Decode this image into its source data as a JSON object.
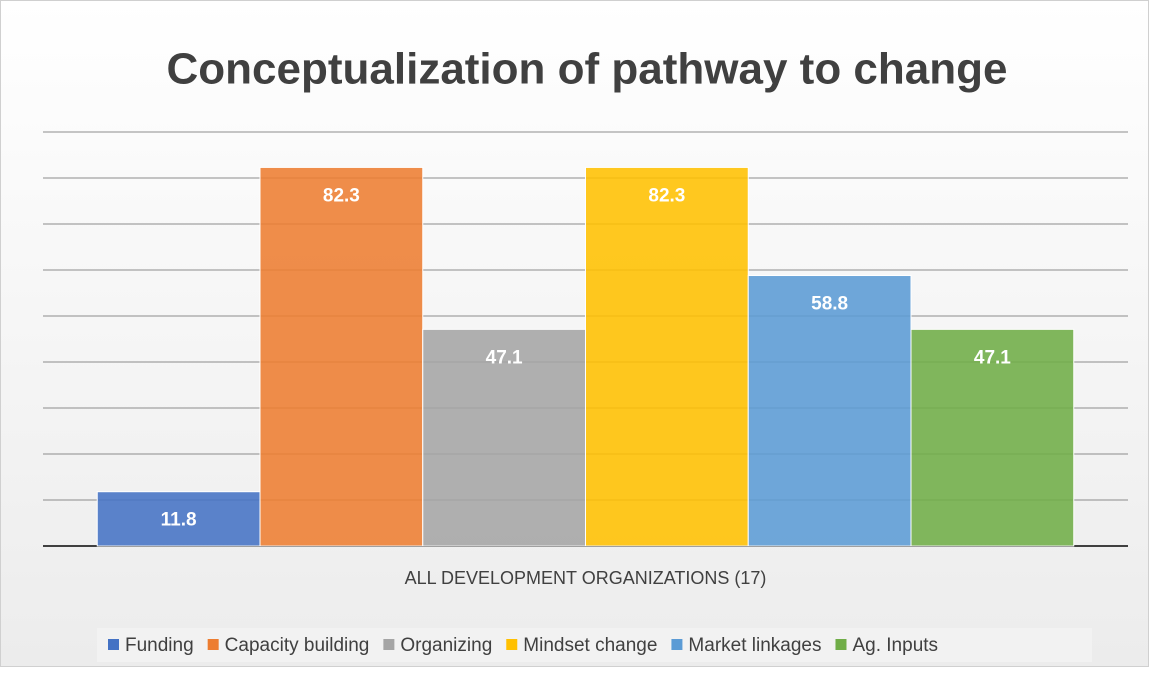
{
  "chart_data": {
    "type": "bar",
    "title": "Conceptualization of pathway to change",
    "categories": [
      "ALL DEVELOPMENT ORGANIZATIONS (17)"
    ],
    "series": [
      {
        "name": "Funding",
        "color": "#4472c4",
        "values": [
          11.8
        ]
      },
      {
        "name": "Capacity building",
        "color": "#ed7d31",
        "values": [
          82.3
        ]
      },
      {
        "name": "Organizing",
        "color": "#a5a5a5",
        "values": [
          47.1
        ]
      },
      {
        "name": "Mindset change",
        "color": "#ffc000",
        "values": [
          82.3
        ]
      },
      {
        "name": "Market linkages",
        "color": "#5b9bd5",
        "values": [
          58.8
        ]
      },
      {
        "name": "Ag. Inputs",
        "color": "#70ad47",
        "values": [
          47.1
        ]
      }
    ],
    "ylim": [
      0,
      90
    ],
    "yticks": [
      0,
      10,
      20,
      30,
      40,
      50,
      60,
      70,
      80,
      90
    ],
    "grid": true,
    "legend": "bottom"
  }
}
